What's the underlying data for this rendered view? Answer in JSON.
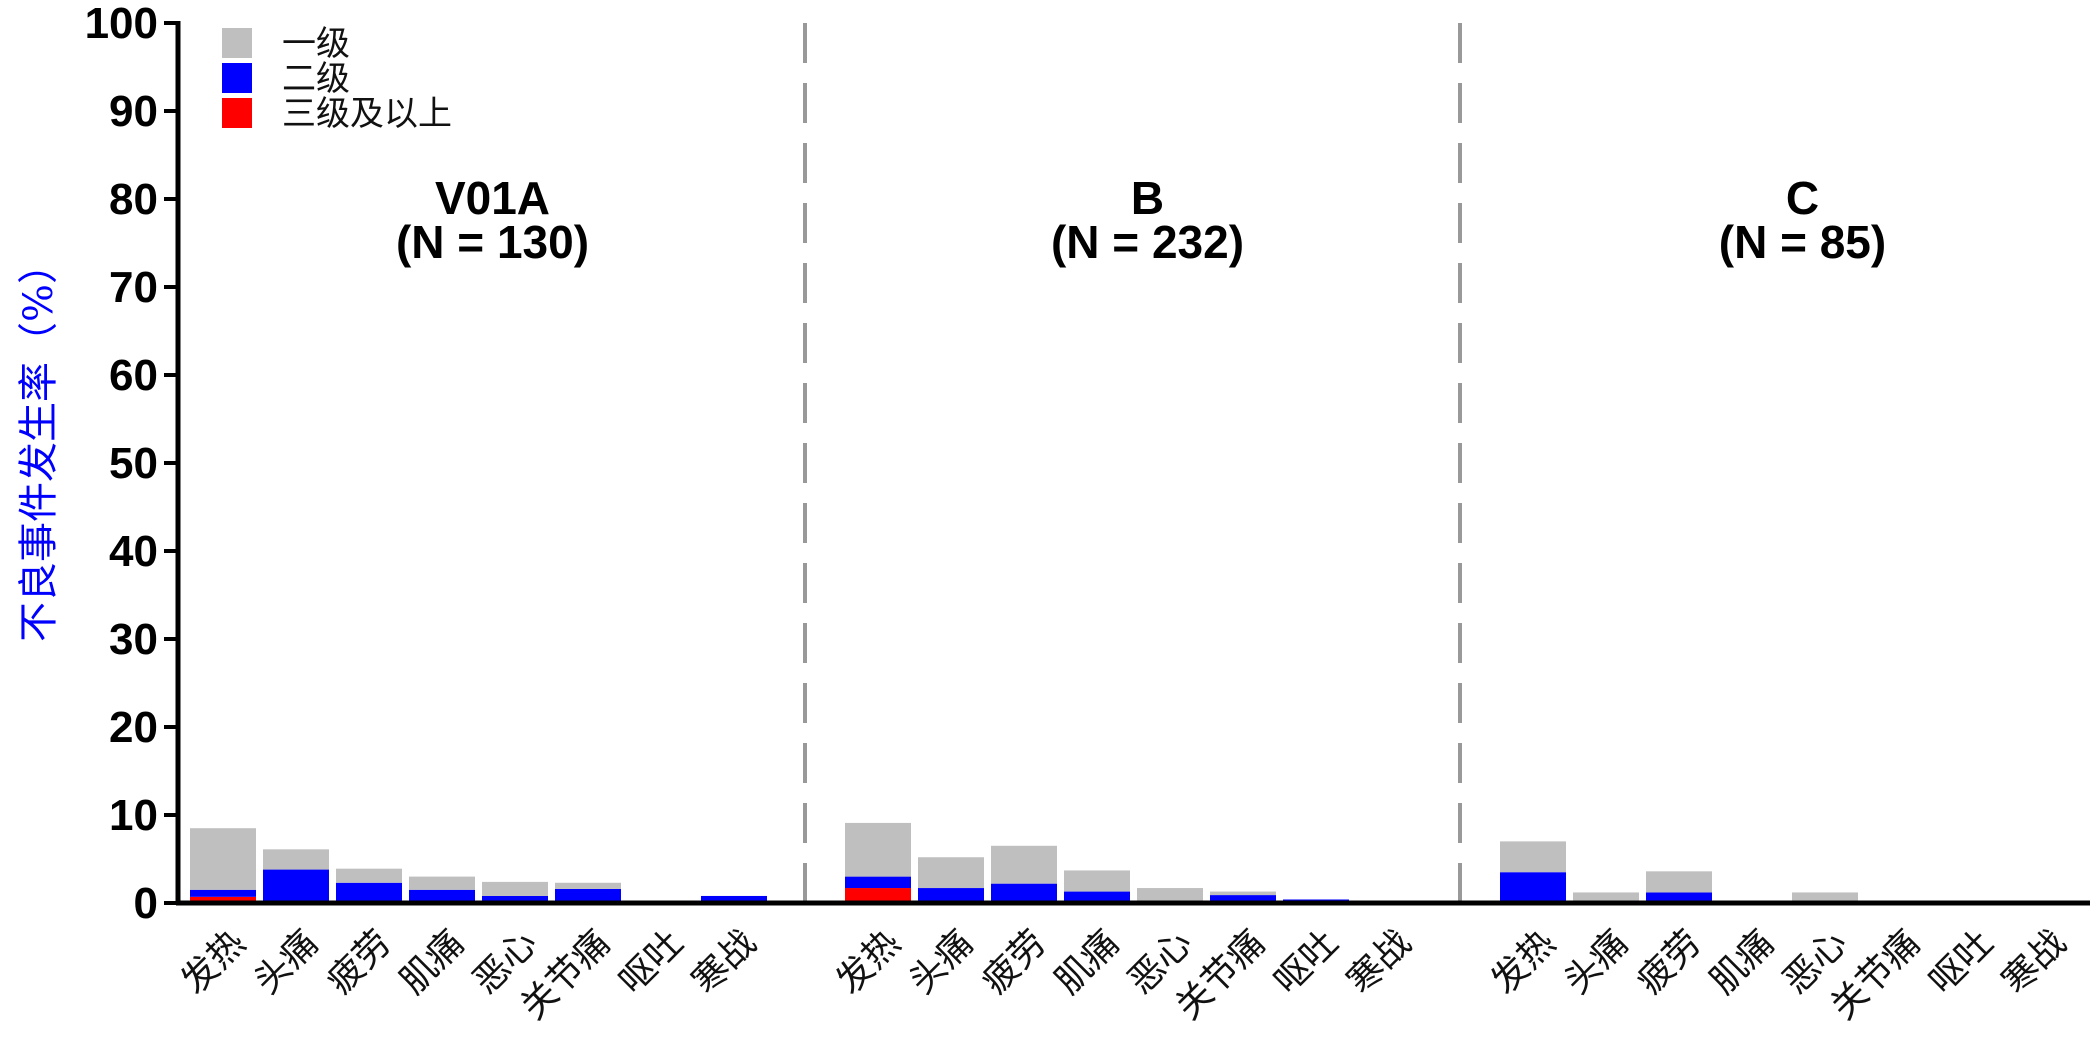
{
  "chart_data": {
    "type": "bar",
    "stacked": true,
    "ylabel": "不良事件发生率（%）",
    "ylim": [
      0,
      100
    ],
    "yticks": [
      "0",
      "10",
      "20",
      "30",
      "40",
      "50",
      "60",
      "70",
      "80",
      "90",
      "100"
    ],
    "categories": [
      "发热",
      "头痛",
      "疲劳",
      "肌痛",
      "恶心",
      "关节痛",
      "呕吐",
      "寒战"
    ],
    "legend": {
      "placement": "top-left",
      "entries": [
        {
          "name": "一级",
          "color": "#bfbfbf"
        },
        {
          "name": "二级",
          "color": "#0000ff"
        },
        {
          "name": "三级及以上",
          "color": "#ff0000"
        }
      ]
    },
    "panels": [
      {
        "title": "V01A",
        "subtitle": "(N = 130)",
        "series": [
          {
            "name": "一级",
            "values": [
              7.0,
              2.3,
              1.6,
              1.5,
              1.6,
              0.7,
              0.0,
              0.0
            ]
          },
          {
            "name": "二级",
            "values": [
              0.8,
              3.8,
              2.3,
              1.5,
              0.8,
              1.6,
              0.0,
              0.8
            ]
          },
          {
            "name": "三级及以上",
            "values": [
              0.7,
              0.0,
              0.0,
              0.0,
              0.0,
              0.0,
              0.0,
              0.0
            ]
          }
        ]
      },
      {
        "title": "B",
        "subtitle": "(N = 232)",
        "series": [
          {
            "name": "一级",
            "values": [
              6.1,
              3.5,
              4.3,
              2.4,
              1.7,
              0.4,
              0.0,
              0.0
            ]
          },
          {
            "name": "二级",
            "values": [
              1.3,
              1.7,
              2.2,
              1.3,
              0.0,
              0.9,
              0.4,
              0.0
            ]
          },
          {
            "name": "三级及以上",
            "values": [
              1.7,
              0.0,
              0.0,
              0.0,
              0.0,
              0.0,
              0.0,
              0.0
            ]
          }
        ]
      },
      {
        "title": "C",
        "subtitle": "(N = 85)",
        "series": [
          {
            "name": "一级",
            "values": [
              3.5,
              1.2,
              2.4,
              0.0,
              1.2,
              0.0,
              0.0,
              0.0
            ]
          },
          {
            "name": "二级",
            "values": [
              3.5,
              0.0,
              1.2,
              0.0,
              0.0,
              0.0,
              0.0,
              0.0
            ]
          },
          {
            "name": "三级及以上",
            "values": [
              0.0,
              0.0,
              0.0,
              0.0,
              0.0,
              0.0,
              0.0,
              0.0
            ]
          }
        ]
      }
    ],
    "divider_color": "#999999"
  }
}
